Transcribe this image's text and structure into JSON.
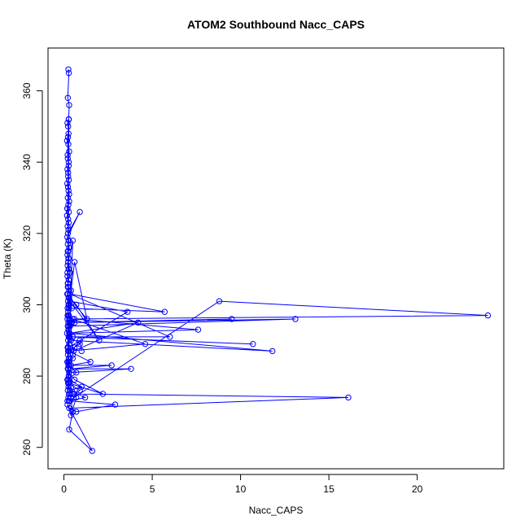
{
  "chart_data": {
    "type": "scatter",
    "title": "ATOM2 Southbound Nacc_CAPS",
    "xlabel": "Nacc_CAPS",
    "ylabel": "Theta (K)",
    "xlim": [
      -0.9,
      24.9
    ],
    "ylim": [
      254,
      372
    ],
    "xticks": [
      0,
      5,
      10,
      15,
      20
    ],
    "yticks": [
      260,
      280,
      300,
      320,
      340,
      360
    ],
    "grid": false,
    "legend": "none",
    "color": "#0000ff",
    "mode": "points+lines",
    "series": [
      {
        "x": [
          0.25,
          0.28,
          0.22,
          0.3,
          0.27,
          0.2,
          0.24,
          0.26,
          0.18,
          0.25,
          0.3,
          0.22,
          0.27,
          0.2,
          0.24,
          0.28,
          0.19,
          0.23,
          0.26,
          0.22,
          0.3,
          0.25,
          0.2,
          0.28,
          0.18,
          0.24,
          0.27,
          0.21,
          0.26,
          0.23,
          0.9,
          0.19,
          0.28,
          0.22,
          0.3,
          0.25,
          0.2,
          0.27,
          0.24,
          0.21,
          0.26,
          0.35,
          0.2,
          0.28,
          0.22,
          0.25,
          0.3,
          0.19,
          0.27,
          0.23,
          0.26,
          0.21,
          0.24,
          0.28,
          0.2,
          0.32,
          0.22,
          0.25,
          0.18,
          0.27,
          0.24,
          0.3,
          0.21,
          0.26,
          0.23,
          0.28,
          0.19,
          0.25,
          0.22,
          0.3,
          0.27,
          0.2,
          0.24,
          0.26,
          0.22,
          0.29,
          0.25,
          0.2,
          0.28,
          0.23,
          0.21,
          0.27,
          0.24,
          0.3,
          0.19,
          0.26,
          0.22,
          0.25,
          0.28,
          0.2,
          0.24,
          0.23,
          0.27,
          0.21,
          0.26,
          0.3,
          0.22,
          0.25,
          0.28,
          0.2,
          0.5,
          0.24,
          0.35,
          0.27,
          0.22,
          0.4,
          0.26,
          0.3,
          0.45,
          0.25,
          0.6,
          0.28,
          0.32,
          0.9,
          0.24,
          0.5,
          0.3,
          0.7,
          0.26,
          1.0,
          0.35,
          1.2,
          0.28,
          8.8,
          24.0,
          0.3,
          0.45,
          9.5,
          0.25,
          13.1,
          0.35,
          0.6,
          7.6,
          0.3,
          0.5,
          10.7,
          0.28,
          0.4,
          11.8,
          0.32,
          0.55,
          4.2,
          0.3,
          0.5,
          6.0,
          0.35,
          5.7,
          0.28,
          0.6,
          1.3,
          0.3,
          0.7,
          2.0,
          0.35,
          3.6,
          0.25,
          0.5,
          4.6,
          0.3,
          1.5,
          0.4,
          2.7,
          0.35,
          3.8,
          0.3,
          0.6,
          2.2,
          0.28,
          0.5,
          16.1,
          0.3,
          0.7,
          2.9,
          0.35,
          0.4,
          0.6,
          0.9,
          0.25,
          0.5,
          0.3,
          1.6,
          0.2,
          0.4,
          0.7,
          0.25,
          0.3,
          0.5,
          0.6,
          0.9,
          1.0
        ],
        "y": [
          366,
          365,
          358,
          356,
          352,
          351,
          350,
          348,
          346,
          345,
          343,
          341,
          340,
          338,
          337,
          335,
          334,
          333,
          332,
          330,
          329,
          328,
          327,
          326,
          325,
          324,
          323,
          322,
          321,
          320,
          326,
          319,
          318,
          317,
          316,
          315,
          314,
          313,
          312,
          311,
          310,
          309,
          308,
          307,
          306,
          305,
          304,
          303,
          302,
          301,
          300,
          299,
          298,
          297,
          296,
          295,
          294,
          293,
          292,
          291,
          290,
          289,
          288,
          287,
          286,
          285,
          284,
          283,
          282,
          281,
          280,
          279,
          278,
          277,
          276,
          275,
          274,
          273,
          352,
          347,
          342,
          339,
          336,
          331,
          327,
          318,
          315,
          313,
          310,
          309,
          306,
          303,
          300,
          297,
          294,
          291,
          288,
          284,
          280,
          279,
          318,
          312,
          309,
          307,
          305,
          304,
          302,
          300,
          299,
          297,
          295,
          293,
          291,
          289,
          287,
          285,
          283,
          281,
          279,
          277,
          276,
          274,
          273,
          301,
          297,
          296,
          295,
          296,
          295,
          296,
          294,
          296,
          293,
          292,
          291,
          289,
          291,
          290,
          287,
          292,
          287,
          295,
          292,
          291,
          291,
          303,
          298,
          299,
          312,
          296,
          302,
          300,
          290,
          301,
          298,
          288,
          296,
          289,
          287,
          284,
          283,
          283,
          282,
          282,
          281,
          279,
          275,
          278,
          275,
          274,
          271,
          270,
          272,
          273,
          274,
          275,
          276,
          278,
          270,
          265,
          259,
          272,
          269,
          274,
          282,
          284,
          286,
          288,
          290,
          287
        ]
      }
    ]
  }
}
